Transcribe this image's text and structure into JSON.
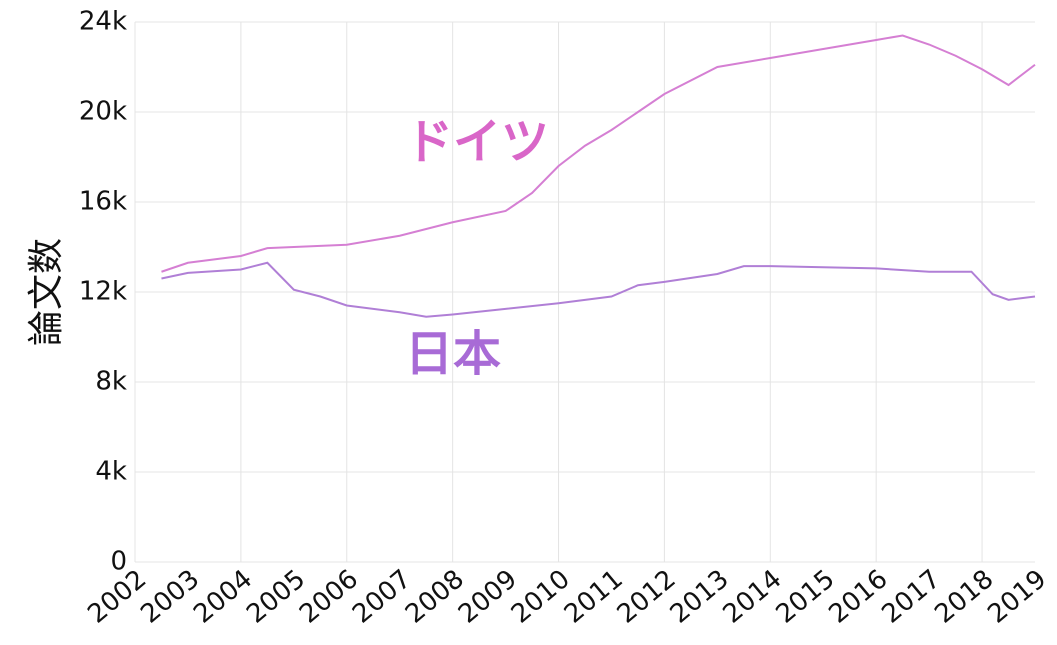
{
  "chart_data": {
    "type": "line",
    "y_label": "論文数",
    "series": [
      {
        "name": "ドイツ",
        "color": "#d57fd3",
        "label_color": "#d966c8",
        "x": [
          2002.5,
          2003,
          2004,
          2004.5,
          2005,
          2006,
          2007,
          2008,
          2009,
          2009.5,
          2010,
          2010.5,
          2011,
          2012,
          2013,
          2014,
          2015,
          2016,
          2016.5,
          2017,
          2017.5,
          2018,
          2018.5,
          2019
        ],
        "values": [
          12900,
          13300,
          13600,
          13950,
          14000,
          14100,
          14500,
          15100,
          15600,
          16400,
          17600,
          18500,
          19200,
          20800,
          22000,
          22400,
          22800,
          23200,
          23400,
          23000,
          22500,
          21900,
          21200,
          22100
        ]
      },
      {
        "name": "日本",
        "color": "#b07fd6",
        "label_color": "#a86bd6",
        "x": [
          2002.5,
          2003,
          2004,
          2004.5,
          2005,
          2005.5,
          2006,
          2007,
          2007.5,
          2008,
          2009,
          2010,
          2011,
          2011.5,
          2012,
          2013,
          2013.5,
          2014,
          2015,
          2016,
          2017,
          2017.8,
          2018.2,
          2018.5,
          2019
        ],
        "values": [
          12600,
          12850,
          13000,
          13300,
          12100,
          11800,
          11400,
          11100,
          10900,
          11000,
          11250,
          11500,
          11800,
          12300,
          12450,
          12800,
          13150,
          13150,
          13100,
          13050,
          12900,
          12900,
          11900,
          11650,
          11800
        ]
      }
    ],
    "xlim": [
      2002,
      2019
    ],
    "xticks": [
      2002,
      2003,
      2004,
      2005,
      2006,
      2007,
      2008,
      2009,
      2010,
      2011,
      2012,
      2013,
      2014,
      2015,
      2016,
      2017,
      2018,
      2019
    ],
    "ylim": [
      0,
      24000
    ],
    "yticks": [
      0,
      {
        "value": 4000,
        "label": "4k"
      },
      {
        "value": 8000,
        "label": "8k"
      },
      {
        "value": 12000,
        "label": "12k"
      },
      {
        "value": 16000,
        "label": "16k"
      },
      {
        "value": 20000,
        "label": "20k"
      },
      {
        "value": 24000,
        "label": "24k"
      }
    ],
    "grid": true
  }
}
